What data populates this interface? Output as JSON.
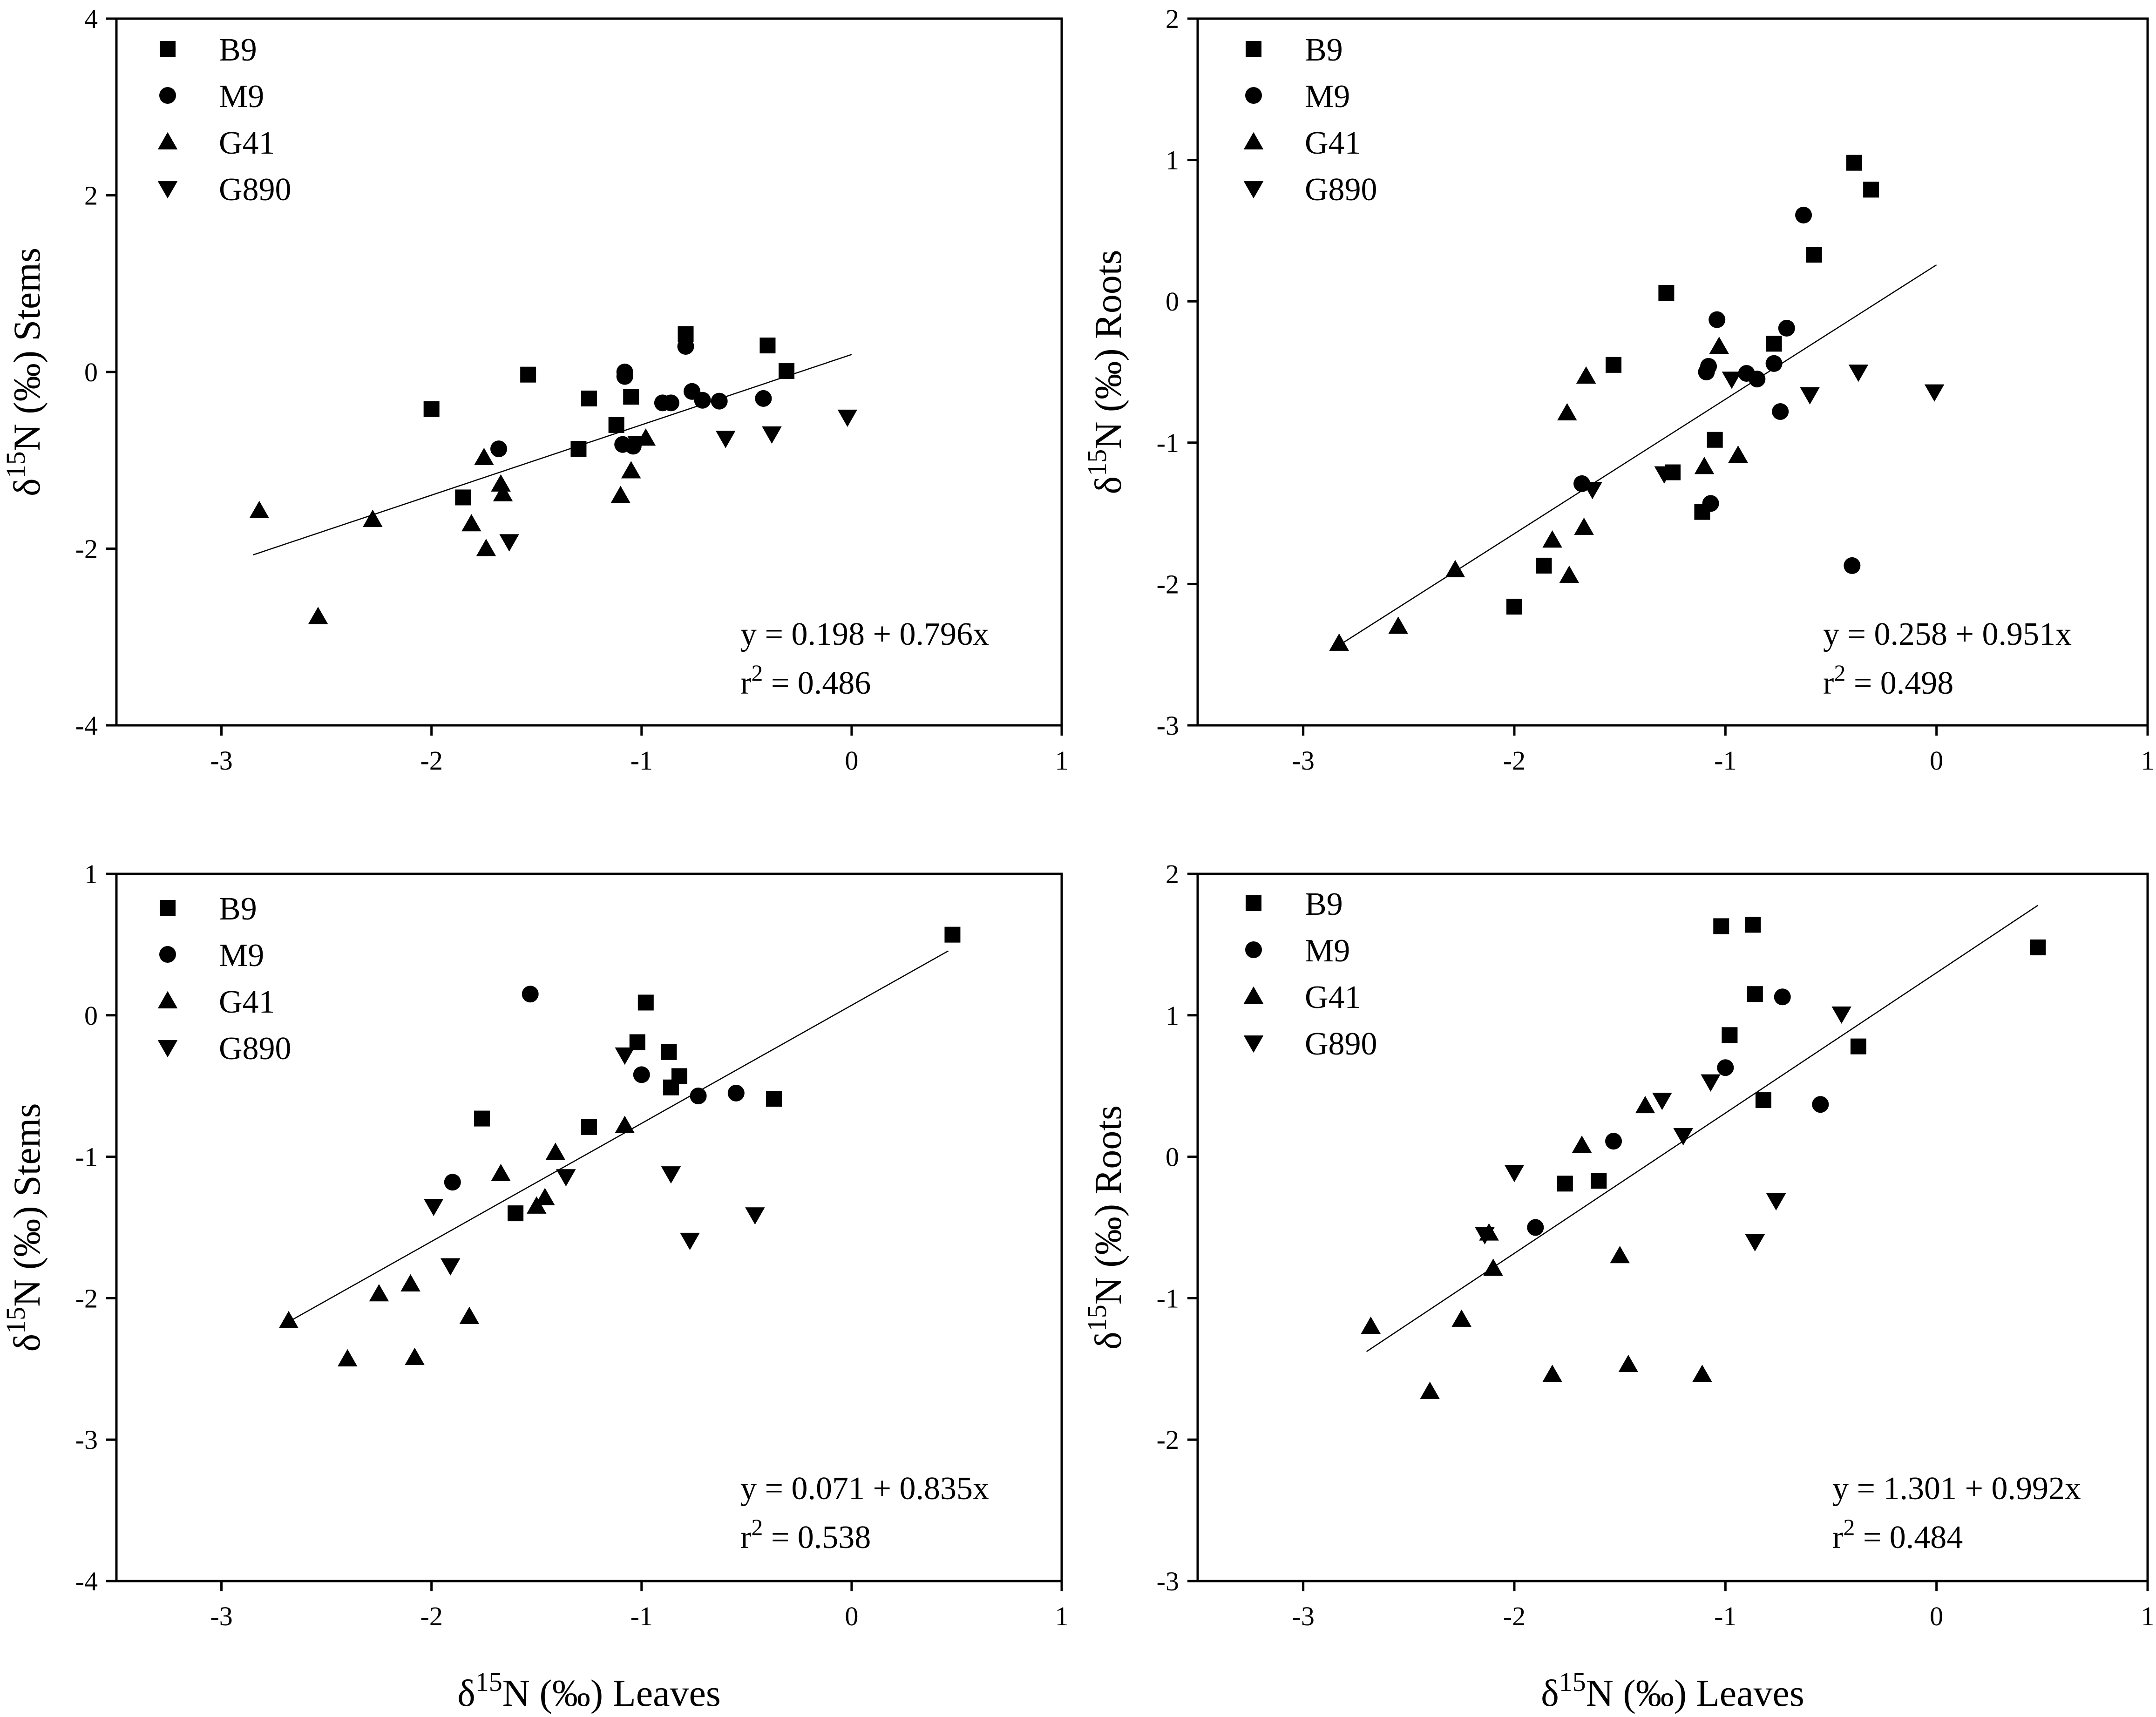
{
  "figure": {
    "legend_series": [
      "B9",
      "M9",
      "G41",
      "G890"
    ],
    "marker_shapes": {
      "B9": "square",
      "M9": "circle",
      "G41": "triangle-up",
      "G890": "triangle-down"
    },
    "superscript": "15",
    "axis_label_prefix": "δ",
    "colors": {
      "marker": "#000000",
      "axis": "#000000",
      "fit_line": "#000000",
      "background": "#ffffff"
    }
  },
  "chart_data": [
    {
      "id": "top-left",
      "type": "scatter",
      "xlabel": "",
      "ylabel_unit": "N (‰) Stems",
      "xlim": [
        -3.5,
        1
      ],
      "ylim": [
        -4,
        4
      ],
      "xticks": [
        -3,
        -2,
        -1,
        0,
        1
      ],
      "yticks": [
        -4,
        -2,
        0,
        2,
        4
      ],
      "legend_position": "top-left",
      "equation": "y = 0.198 + 0.796x",
      "r2_prefix": "r",
      "r2_suffix": " = 0.486",
      "fit": {
        "intercept": 0.198,
        "slope": 0.796,
        "x_range": [
          -2.85,
          0
        ]
      },
      "series": [
        {
          "name": "B9",
          "points": [
            [
              -2.0,
              -0.42
            ],
            [
              -1.85,
              -1.42
            ],
            [
              -1.54,
              -0.03
            ],
            [
              -1.3,
              -0.87
            ],
            [
              -1.25,
              -0.3
            ],
            [
              -1.12,
              -0.6
            ],
            [
              -1.05,
              -0.28
            ],
            [
              -0.79,
              0.43
            ],
            [
              -0.4,
              0.3
            ],
            [
              -0.31,
              0.01
            ]
          ]
        },
        {
          "name": "M9",
          "points": [
            [
              -1.68,
              -0.87
            ],
            [
              -1.09,
              -0.82
            ],
            [
              -1.08,
              0.0
            ],
            [
              -1.08,
              -0.05
            ],
            [
              -1.04,
              -0.84
            ],
            [
              -0.9,
              -0.35
            ],
            [
              -0.86,
              -0.35
            ],
            [
              -0.79,
              0.29
            ],
            [
              -0.76,
              -0.22
            ],
            [
              -0.71,
              -0.32
            ],
            [
              -0.63,
              -0.33
            ],
            [
              -0.42,
              -0.3
            ]
          ]
        },
        {
          "name": "G41",
          "points": [
            [
              -2.82,
              -1.57
            ],
            [
              -2.54,
              -2.77
            ],
            [
              -2.28,
              -1.67
            ],
            [
              -1.81,
              -1.72
            ],
            [
              -1.75,
              -0.97
            ],
            [
              -1.74,
              -2.0
            ],
            [
              -1.67,
              -1.27
            ],
            [
              -1.66,
              -1.38
            ],
            [
              -1.1,
              -1.4
            ],
            [
              -1.05,
              -1.12
            ],
            [
              -0.98,
              -0.75
            ]
          ]
        },
        {
          "name": "G890",
          "points": [
            [
              -1.63,
              -1.92
            ],
            [
              -1.02,
              -0.81
            ],
            [
              -0.6,
              -0.75
            ],
            [
              -0.38,
              -0.7
            ],
            [
              -0.02,
              -0.51
            ]
          ]
        }
      ]
    },
    {
      "id": "top-right",
      "type": "scatter",
      "xlabel": "",
      "ylabel_unit": "N (‰) Roots",
      "xlim": [
        -3.5,
        1
      ],
      "ylim": [
        -3,
        2
      ],
      "xticks": [
        -3,
        -2,
        -1,
        0,
        1
      ],
      "yticks": [
        -3,
        -2,
        -1,
        0,
        1,
        2
      ],
      "legend_position": "top-left",
      "equation": "y = 0.258 + 0.951x",
      "r2_prefix": "r",
      "r2_suffix": " = 0.498",
      "fit": {
        "intercept": 0.258,
        "slope": 0.951,
        "x_range": [
          -2.85,
          0
        ]
      },
      "series": [
        {
          "name": "B9",
          "points": [
            [
              -2.0,
              -2.16
            ],
            [
              -1.86,
              -1.87
            ],
            [
              -1.53,
              -0.45
            ],
            [
              -1.28,
              0.06
            ],
            [
              -1.25,
              -1.21
            ],
            [
              -1.11,
              -1.49
            ],
            [
              -1.05,
              -0.98
            ],
            [
              -0.77,
              -0.3
            ],
            [
              -0.58,
              0.33
            ],
            [
              -0.39,
              0.98
            ],
            [
              -0.31,
              0.79
            ]
          ]
        },
        {
          "name": "M9",
          "points": [
            [
              -1.68,
              -1.29
            ],
            [
              -1.09,
              -0.5
            ],
            [
              -1.08,
              -0.46
            ],
            [
              -1.07,
              -1.43
            ],
            [
              -1.04,
              -0.13
            ],
            [
              -0.9,
              -0.51
            ],
            [
              -0.85,
              -0.55
            ],
            [
              -0.77,
              -0.44
            ],
            [
              -0.74,
              -0.78
            ],
            [
              -0.71,
              -0.19
            ],
            [
              -0.63,
              0.61
            ],
            [
              -0.4,
              -1.87
            ]
          ]
        },
        {
          "name": "G41",
          "points": [
            [
              -2.83,
              -2.42
            ],
            [
              -2.55,
              -2.3
            ],
            [
              -2.28,
              -1.9
            ],
            [
              -1.82,
              -1.69
            ],
            [
              -1.75,
              -0.79
            ],
            [
              -1.74,
              -1.94
            ],
            [
              -1.67,
              -1.6
            ],
            [
              -1.66,
              -0.53
            ],
            [
              -1.1,
              -1.17
            ],
            [
              -1.03,
              -0.32
            ],
            [
              -0.94,
              -1.09
            ]
          ]
        },
        {
          "name": "G890",
          "points": [
            [
              -1.63,
              -1.33
            ],
            [
              -1.29,
              -1.22
            ],
            [
              -0.97,
              -0.55
            ],
            [
              -0.6,
              -0.66
            ],
            [
              -0.37,
              -0.5
            ],
            [
              -0.01,
              -0.64
            ]
          ]
        }
      ]
    },
    {
      "id": "bottom-left",
      "type": "scatter",
      "xlabel_unit": "N (‰) Leaves",
      "ylabel_unit": "N (‰) Stems",
      "xlim": [
        -3.5,
        1
      ],
      "ylim": [
        -4,
        1
      ],
      "xticks": [
        -3,
        -2,
        -1,
        0,
        1
      ],
      "yticks": [
        -4,
        -3,
        -2,
        -1,
        0,
        1
      ],
      "legend_position": "top-left",
      "equation": "y = 0.071 + 0.835x",
      "r2_prefix": "r",
      "r2_suffix": " = 0.538",
      "fit": {
        "intercept": 0.071,
        "slope": 0.835,
        "x_range": [
          -2.7,
          0.46
        ]
      },
      "series": [
        {
          "name": "B9",
          "points": [
            [
              -1.76,
              -0.73
            ],
            [
              -1.6,
              -1.4
            ],
            [
              -1.25,
              -0.79
            ],
            [
              -1.02,
              -0.19
            ],
            [
              -0.98,
              0.09
            ],
            [
              -0.87,
              -0.26
            ],
            [
              -0.86,
              -0.51
            ],
            [
              -0.82,
              -0.43
            ],
            [
              -0.37,
              -0.59
            ],
            [
              0.48,
              0.57
            ]
          ]
        },
        {
          "name": "M9",
          "points": [
            [
              -1.9,
              -1.18
            ],
            [
              -1.53,
              0.15
            ],
            [
              -1.0,
              -0.42
            ],
            [
              -0.73,
              -0.57
            ],
            [
              -0.55,
              -0.55
            ]
          ]
        },
        {
          "name": "G41",
          "points": [
            [
              -2.68,
              -2.16
            ],
            [
              -2.4,
              -2.43
            ],
            [
              -2.25,
              -1.97
            ],
            [
              -2.1,
              -1.9
            ],
            [
              -2.08,
              -2.42
            ],
            [
              -1.82,
              -2.13
            ],
            [
              -1.67,
              -1.12
            ],
            [
              -1.5,
              -1.35
            ],
            [
              -1.46,
              -1.29
            ],
            [
              -1.41,
              -0.97
            ],
            [
              -1.08,
              -0.78
            ]
          ]
        },
        {
          "name": "G890",
          "points": [
            [
              -1.99,
              -1.35
            ],
            [
              -1.91,
              -1.77
            ],
            [
              -1.36,
              -1.14
            ],
            [
              -1.08,
              -0.28
            ],
            [
              -0.86,
              -1.12
            ],
            [
              -0.77,
              -1.59
            ],
            [
              -0.46,
              -1.41
            ]
          ]
        }
      ]
    },
    {
      "id": "bottom-right",
      "type": "scatter",
      "xlabel_unit": "N (‰) Leaves",
      "ylabel_unit": "N (‰) Roots",
      "xlim": [
        -3.5,
        1
      ],
      "ylim": [
        -3,
        2
      ],
      "xticks": [
        -3,
        -2,
        -1,
        0,
        1
      ],
      "yticks": [
        -3,
        -2,
        -1,
        0,
        1,
        2
      ],
      "legend_position": "top-left",
      "equation": "y = 1.301 + 0.992x",
      "r2_prefix": "r",
      "r2_suffix": " = 0.484",
      "fit": {
        "intercept": 1.301,
        "slope": 0.992,
        "x_range": [
          -2.7,
          0.48
        ]
      },
      "series": [
        {
          "name": "B9",
          "points": [
            [
              -1.76,
              -0.19
            ],
            [
              -1.6,
              -0.17
            ],
            [
              -1.02,
              1.63
            ],
            [
              -0.98,
              0.86
            ],
            [
              -0.87,
              1.64
            ],
            [
              -0.86,
              1.15
            ],
            [
              -0.82,
              0.4
            ],
            [
              -0.37,
              0.78
            ],
            [
              0.48,
              1.48
            ]
          ]
        },
        {
          "name": "M9",
          "points": [
            [
              -1.9,
              -0.5
            ],
            [
              -1.53,
              0.11
            ],
            [
              -1.0,
              0.63
            ],
            [
              -0.73,
              1.13
            ],
            [
              -0.55,
              0.37
            ]
          ]
        },
        {
          "name": "G41",
          "points": [
            [
              -2.68,
              -1.2
            ],
            [
              -2.4,
              -1.66
            ],
            [
              -2.25,
              -1.15
            ],
            [
              -2.12,
              -0.54
            ],
            [
              -2.1,
              -0.79
            ],
            [
              -1.82,
              -1.54
            ],
            [
              -1.68,
              0.08
            ],
            [
              -1.5,
              -0.7
            ],
            [
              -1.46,
              -1.47
            ],
            [
              -1.38,
              0.36
            ],
            [
              -1.11,
              -1.54
            ]
          ]
        },
        {
          "name": "G890",
          "points": [
            [
              -2.14,
              -0.55
            ],
            [
              -2.0,
              -0.11
            ],
            [
              -1.3,
              0.4
            ],
            [
              -1.2,
              0.15
            ],
            [
              -1.07,
              0.53
            ],
            [
              -0.86,
              -0.6
            ],
            [
              -0.76,
              -0.31
            ],
            [
              -0.45,
              1.01
            ]
          ]
        }
      ]
    }
  ]
}
